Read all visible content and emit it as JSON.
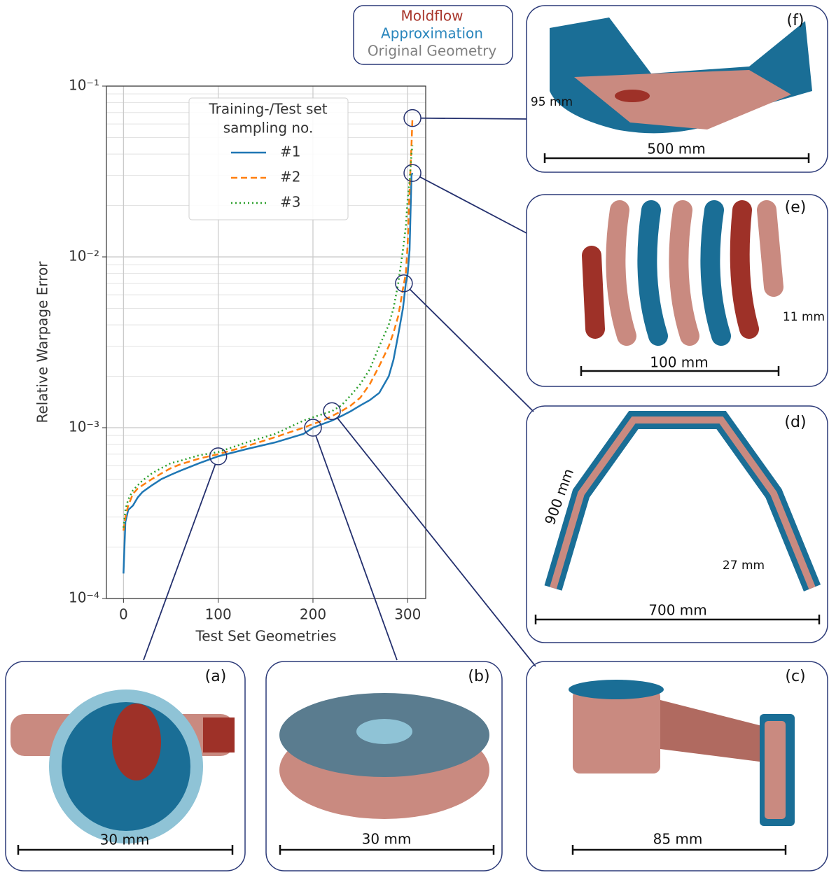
{
  "chart_data": {
    "type": "line",
    "ylabel": "Relative Warpage Error",
    "xlabel": "Test Set Geometries",
    "legend_title": [
      "Training-/Test set",
      "sampling no."
    ],
    "log_y": true,
    "grid": true,
    "x": [
      0,
      2,
      5,
      10,
      15,
      20,
      30,
      40,
      50,
      60,
      80,
      100,
      130,
      160,
      190,
      200,
      210,
      220,
      230,
      240,
      250,
      260,
      270,
      280,
      285,
      290,
      295,
      298,
      300,
      302,
      304,
      305
    ],
    "series": [
      {
        "name": "#1",
        "color": "#1f77b4",
        "style": "solid",
        "values": [
          0.00014,
          0.00028,
          0.00033,
          0.00035,
          0.00039,
          0.00042,
          0.00046,
          0.0005,
          0.00053,
          0.00056,
          0.00062,
          0.00068,
          0.00075,
          0.00082,
          0.00092,
          0.001,
          0.00105,
          0.0011,
          0.00117,
          0.00125,
          0.00135,
          0.00145,
          0.0016,
          0.002,
          0.0025,
          0.0035,
          0.005,
          0.007,
          0.008,
          0.011,
          0.03,
          0.031
        ]
      },
      {
        "name": "#2",
        "color": "#ff7f0e",
        "style": "dashed",
        "values": [
          0.00025,
          0.0003,
          0.00035,
          0.00041,
          0.00044,
          0.00046,
          0.0005,
          0.00054,
          0.00058,
          0.00061,
          0.00066,
          0.0007,
          0.00078,
          0.00088,
          0.001,
          0.00105,
          0.0011,
          0.00117,
          0.00125,
          0.00135,
          0.0015,
          0.0018,
          0.0023,
          0.003,
          0.0036,
          0.0045,
          0.0065,
          0.008,
          0.012,
          0.025,
          0.045,
          0.065
        ]
      },
      {
        "name": "#3",
        "color": "#2ca02c",
        "style": "dotted",
        "values": [
          0.00026,
          0.00033,
          0.00038,
          0.00043,
          0.00046,
          0.00049,
          0.00054,
          0.00058,
          0.00062,
          0.00064,
          0.00069,
          0.00072,
          0.00082,
          0.00092,
          0.0011,
          0.00115,
          0.0012,
          0.00125,
          0.00135,
          0.00155,
          0.0018,
          0.0022,
          0.003,
          0.004,
          0.005,
          0.007,
          0.011,
          0.015,
          0.022,
          0.028,
          0.04,
          0.045
        ]
      }
    ],
    "xlim": [
      -18,
      319
    ],
    "xticks": [
      0,
      100,
      200,
      300
    ],
    "ylim": [
      0.0001,
      0.1
    ],
    "yticks": [
      {
        "value": 0.0001,
        "label": "10⁻⁴"
      },
      {
        "value": 0.001,
        "label": "10⁻³"
      },
      {
        "value": 0.01,
        "label": "10⁻²"
      },
      {
        "value": 0.1,
        "label": "10⁻¹"
      }
    ],
    "yminorticks": [
      0.0002,
      0.0003,
      0.0004,
      0.0005,
      0.0006,
      0.0007,
      0.0008,
      0.0009,
      0.002,
      0.003,
      0.004,
      0.005,
      0.006,
      0.007,
      0.008,
      0.009,
      0.02,
      0.03,
      0.04,
      0.05,
      0.06,
      0.07,
      0.08,
      0.09
    ],
    "highlights": [
      {
        "x": 100,
        "y": 0.00068
      },
      {
        "x": 200,
        "y": 0.001
      },
      {
        "x": 220,
        "y": 0.00125
      },
      {
        "x": 296,
        "y": 0.007
      },
      {
        "x": 305,
        "y": 0.031
      },
      {
        "x": 305,
        "y": 0.065
      }
    ]
  },
  "geometry_legend": [
    {
      "name": "Moldflow",
      "color": "#a8352b"
    },
    {
      "name": "Approximation",
      "color": "#2a86bd"
    },
    {
      "name": "Original Geometry",
      "color": "#7f7f7f"
    }
  ],
  "panels": [
    {
      "label": "(a)",
      "scale": "30 mm",
      "notes": []
    },
    {
      "label": "(b)",
      "scale": "30 mm",
      "notes": []
    },
    {
      "label": "(c)",
      "scale": "85 mm",
      "notes": []
    },
    {
      "label": "(d)",
      "scale": "700 mm",
      "notes": [
        "27 mm",
        "900 mm"
      ]
    },
    {
      "label": "(e)",
      "scale": "100 mm",
      "notes": [
        "11 mm"
      ]
    },
    {
      "label": "(f)",
      "scale": "500 mm",
      "notes": [
        "95 mm"
      ]
    }
  ]
}
